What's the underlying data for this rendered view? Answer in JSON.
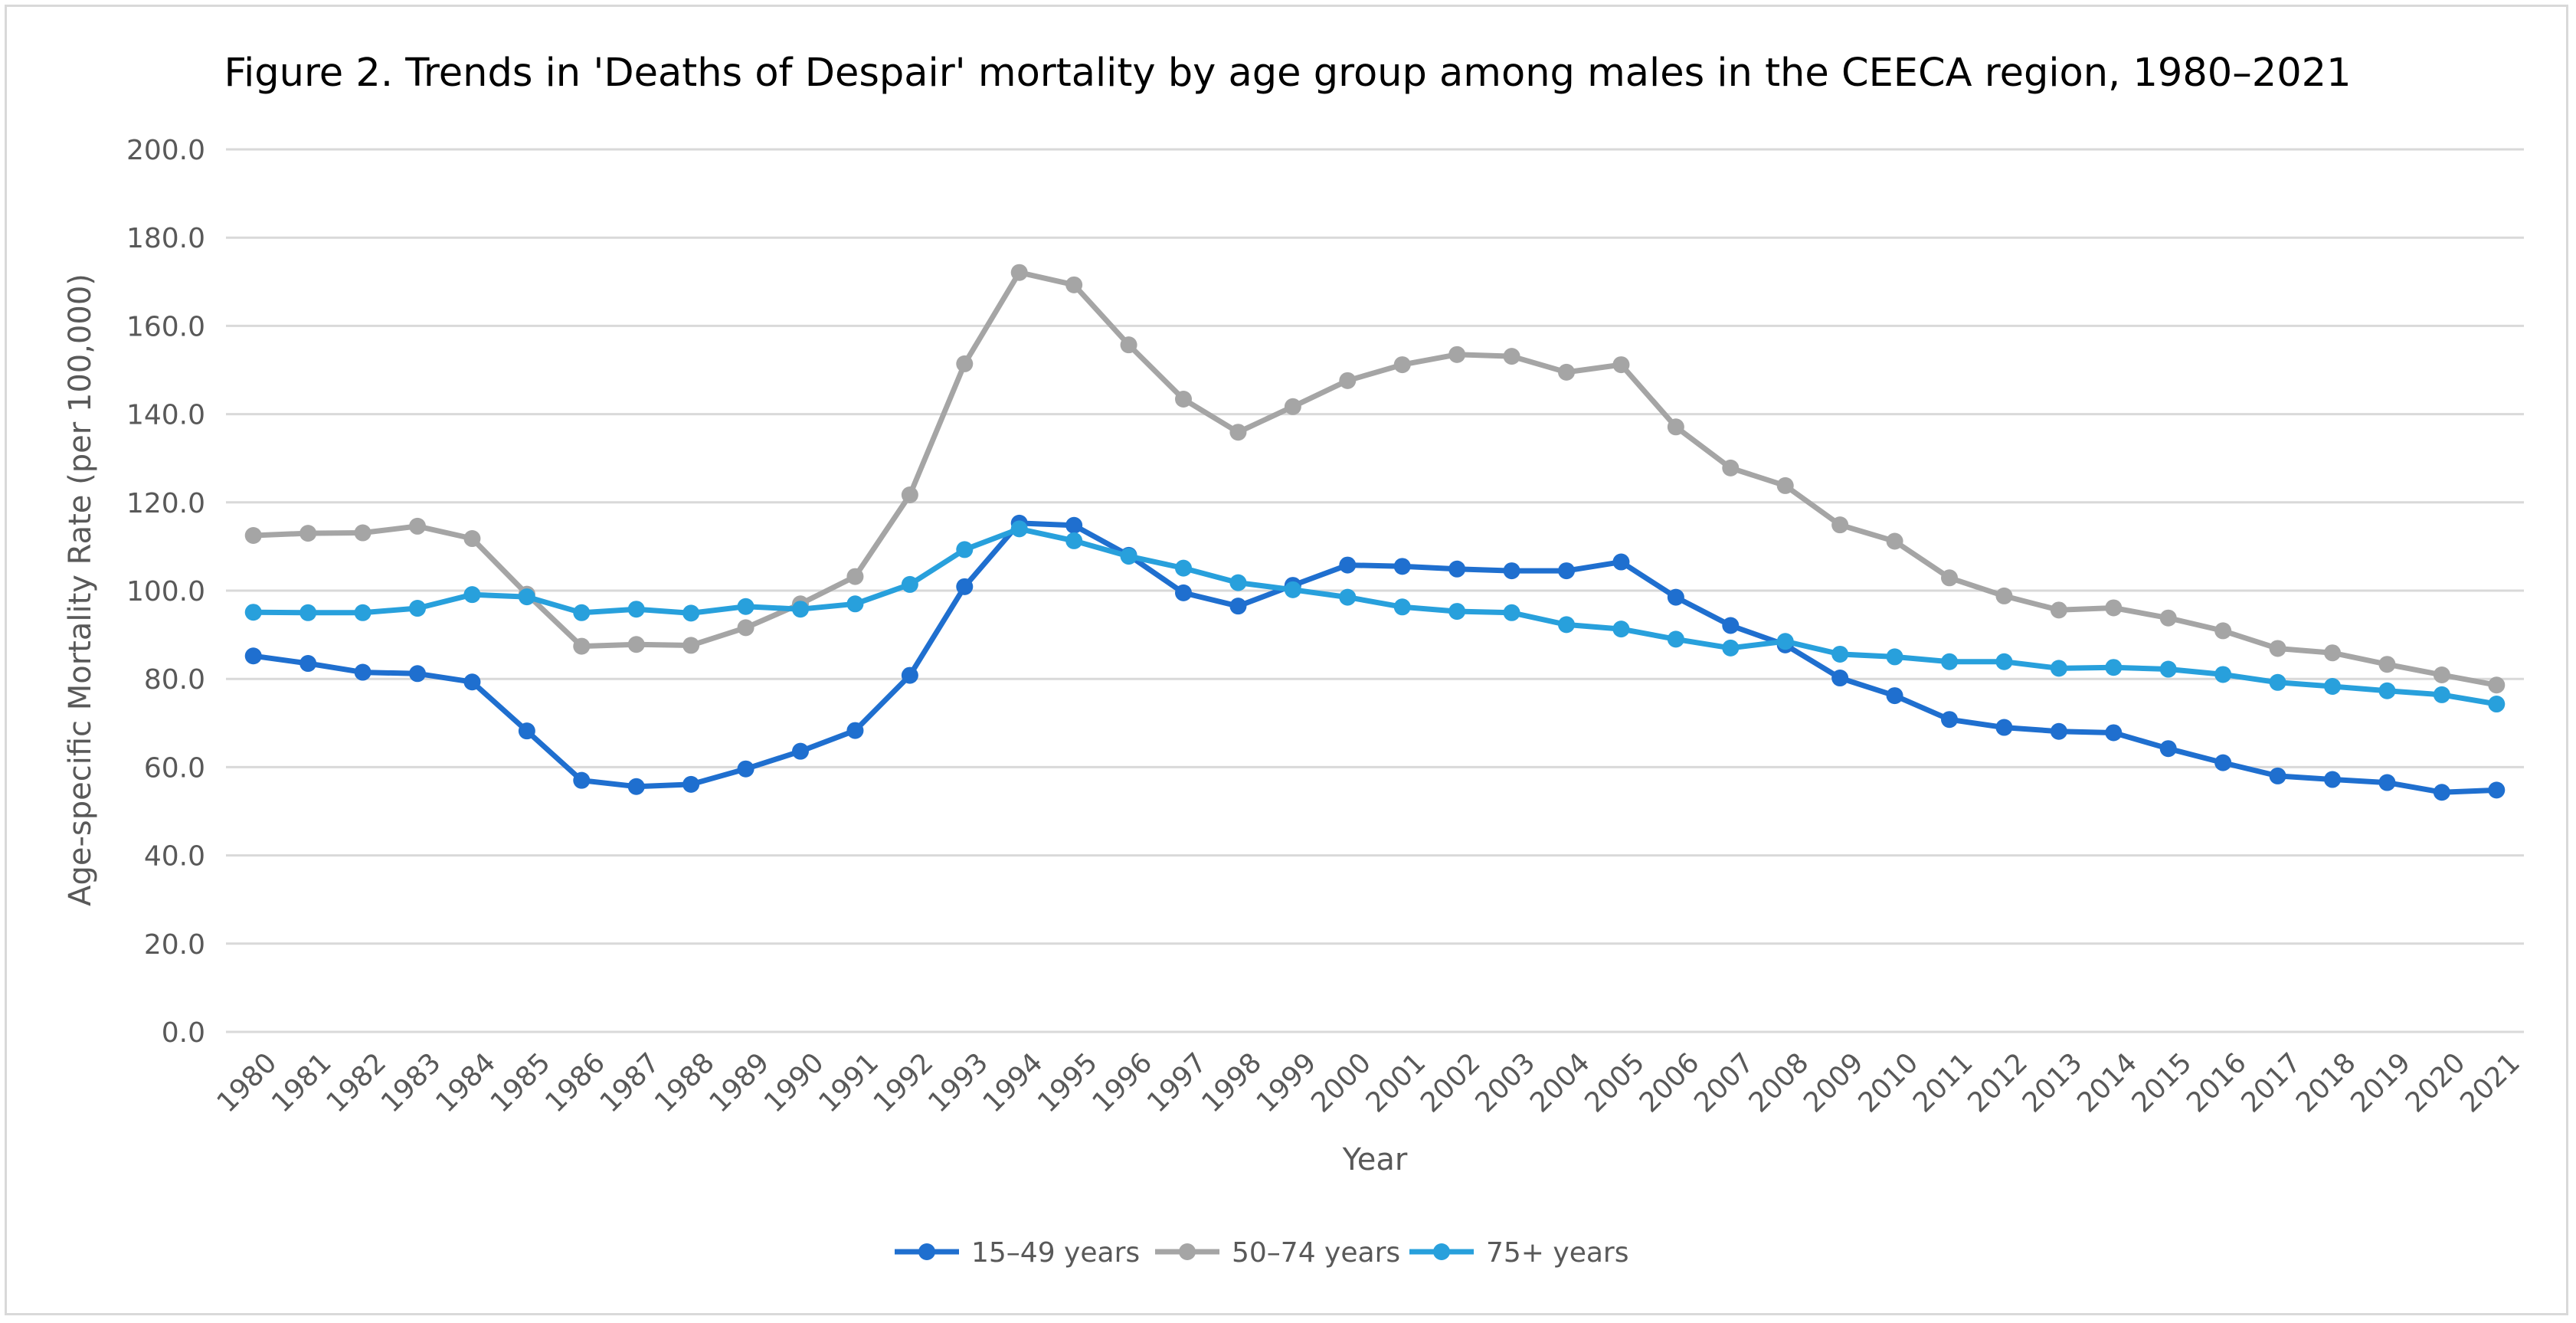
{
  "chart_data": {
    "type": "line",
    "title": "Figure 2. Trends in 'Deaths of Despair' mortality by age group among males in the CEECA region, 1980–2021",
    "xlabel": "Year",
    "ylabel": "Age-specific Mortality Rate (per 100,000)",
    "ylim": [
      0,
      200
    ],
    "ystep": 20,
    "yticks": [
      "0.0",
      "20.0",
      "40.0",
      "60.0",
      "80.0",
      "100.0",
      "120.0",
      "140.0",
      "160.0",
      "180.0",
      "200.0"
    ],
    "grid": true,
    "legend_position": "bottom",
    "categories": [
      "1980",
      "1981",
      "1982",
      "1983",
      "1984",
      "1985",
      "1986",
      "1987",
      "1988",
      "1989",
      "1990",
      "1991",
      "1992",
      "1993",
      "1994",
      "1995",
      "1996",
      "1997",
      "1998",
      "1999",
      "2000",
      "2001",
      "2002",
      "2003",
      "2004",
      "2005",
      "2006",
      "2007",
      "2008",
      "2009",
      "2010",
      "2011",
      "2012",
      "2013",
      "2014",
      "2015",
      "2016",
      "2017",
      "2018",
      "2019",
      "2020",
      "2021"
    ],
    "series": [
      {
        "name": "15–49 years",
        "color": "#1f6fcf",
        "values": [
          85.2,
          83.5,
          81.5,
          81.2,
          79.3,
          68.2,
          57.0,
          55.6,
          56.1,
          59.6,
          63.6,
          68.3,
          80.8,
          100.9,
          115.3,
          114.8,
          108.0,
          99.5,
          96.5,
          101.2,
          105.8,
          105.5,
          104.9,
          104.5,
          104.5,
          106.5,
          98.5,
          92.1,
          87.7,
          80.2,
          76.2,
          70.8,
          69.0,
          68.1,
          67.8,
          64.2,
          61.0,
          58.0,
          57.2,
          56.5,
          54.3,
          54.8
        ]
      },
      {
        "name": "50–74 years",
        "color": "#a5a5a5",
        "values": [
          112.5,
          113.0,
          113.1,
          114.6,
          111.8,
          99.2,
          87.4,
          87.8,
          87.6,
          91.6,
          97.0,
          103.2,
          121.7,
          151.4,
          172.1,
          169.3,
          155.7,
          143.4,
          135.9,
          141.7,
          147.6,
          151.2,
          153.5,
          153.1,
          149.5,
          151.2,
          137.1,
          127.8,
          123.8,
          114.9,
          111.2,
          102.9,
          98.8,
          95.6,
          96.1,
          93.8,
          90.9,
          86.9,
          85.9,
          83.3,
          80.9,
          78.6
        ]
      },
      {
        "name": "75+ years",
        "color": "#28a0dc",
        "values": [
          95.1,
          95.0,
          95.0,
          96.0,
          99.1,
          98.6,
          95.0,
          95.8,
          94.9,
          96.4,
          95.8,
          97.0,
          101.4,
          109.3,
          114.0,
          111.3,
          107.8,
          105.1,
          101.8,
          100.2,
          98.5,
          96.3,
          95.3,
          95.0,
          92.3,
          91.3,
          89.0,
          87.0,
          88.5,
          85.6,
          85.0,
          83.9,
          83.9,
          82.4,
          82.6,
          82.2,
          81.0,
          79.2,
          78.3,
          77.3,
          76.4,
          74.3
        ]
      }
    ]
  }
}
